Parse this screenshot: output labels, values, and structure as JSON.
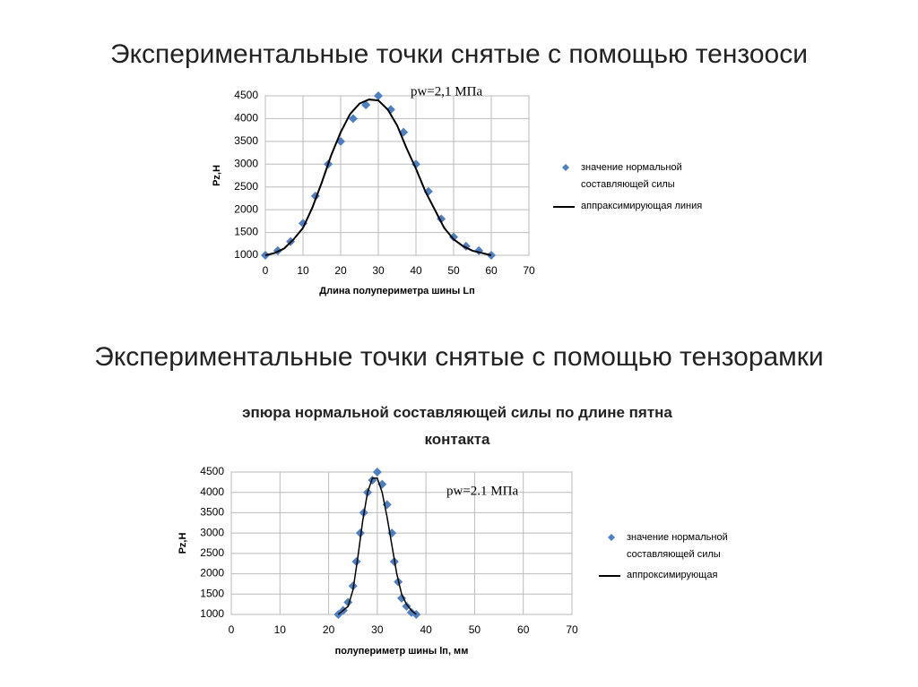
{
  "slide_titles": [
    "Экспериментальные точки снятые с помощью тензооси",
    "Экспериментальные точки снятые с помощью тензорамки"
  ],
  "chart_data": [
    {
      "type": "scatter",
      "annotation": "pw=2,1 МПа",
      "xlabel": "Длина полупериметра шины Lп",
      "ylabel": "Pz,H",
      "xlim": [
        0,
        70
      ],
      "xticks": [
        0,
        10,
        20,
        30,
        40,
        50,
        60,
        70
      ],
      "ylim": [
        1000,
        4500
      ],
      "yticks": [
        1000,
        1500,
        2000,
        2500,
        3000,
        3500,
        4000,
        4500
      ],
      "grid": true,
      "series": [
        {
          "name": "значение нормальной составляющей силы",
          "kind": "marker",
          "color": "#4f7fbf",
          "x": [
            0,
            3.3,
            6.7,
            10,
            13.3,
            16.7,
            20,
            23.3,
            26.7,
            30,
            33.3,
            36.7,
            40,
            43.3,
            46.7,
            50,
            53.3,
            56.7,
            60
          ],
          "values": [
            1000,
            1100,
            1300,
            1700,
            2300,
            3000,
            3500,
            4000,
            4300,
            4500,
            4200,
            3700,
            3000,
            2400,
            1800,
            1400,
            1200,
            1100,
            1000
          ]
        },
        {
          "name": "аппраксимирующая линия",
          "kind": "line",
          "color": "#000000",
          "x": [
            0,
            2.5,
            5,
            7.5,
            10,
            12.5,
            15,
            17.5,
            20,
            22.5,
            25,
            27.5,
            30,
            32.5,
            35,
            37.5,
            40,
            42.5,
            45,
            47.5,
            50,
            52.5,
            55,
            57.5,
            60
          ],
          "values": [
            1000,
            1050,
            1150,
            1350,
            1600,
            2050,
            2600,
            3200,
            3700,
            4100,
            4330,
            4420,
            4400,
            4200,
            3850,
            3350,
            2900,
            2400,
            2000,
            1600,
            1350,
            1200,
            1100,
            1050,
            1000
          ]
        }
      ]
    },
    {
      "type": "scatter",
      "title": "эпюра нормальной составляющей силы по длине пятна контакта",
      "annotation": "pw=2.1 МПа",
      "xlabel": "полупериметр шины lп, мм",
      "ylabel": "Pz,H",
      "xlim": [
        0,
        70
      ],
      "xticks": [
        0,
        10,
        20,
        30,
        40,
        50,
        60,
        70
      ],
      "ylim": [
        1000,
        4500
      ],
      "yticks": [
        1000,
        1500,
        2000,
        2500,
        3000,
        3500,
        4000,
        4500
      ],
      "grid": true,
      "series": [
        {
          "name": "значение нормальной составляющей силы",
          "kind": "marker",
          "color": "#4f7fbf",
          "x": [
            22,
            23,
            24,
            25,
            25.7,
            26.5,
            27.2,
            28,
            29,
            30,
            31,
            32,
            33,
            33.5,
            34.3,
            35,
            36,
            37,
            38
          ],
          "values": [
            1000,
            1100,
            1300,
            1700,
            2300,
            3000,
            3500,
            4000,
            4300,
            4500,
            4200,
            3700,
            3000,
            2300,
            1800,
            1400,
            1200,
            1050,
            1000
          ]
        },
        {
          "name": "аппроксимирующая",
          "kind": "line",
          "color": "#000000",
          "x": [
            22,
            24,
            25,
            26,
            27,
            28,
            29,
            30,
            31,
            32,
            33,
            34,
            35,
            36,
            37,
            38
          ],
          "values": [
            1000,
            1200,
            1600,
            2400,
            3300,
            4000,
            4350,
            4350,
            4000,
            3400,
            2700,
            2000,
            1500,
            1250,
            1100,
            1000
          ]
        }
      ]
    }
  ]
}
